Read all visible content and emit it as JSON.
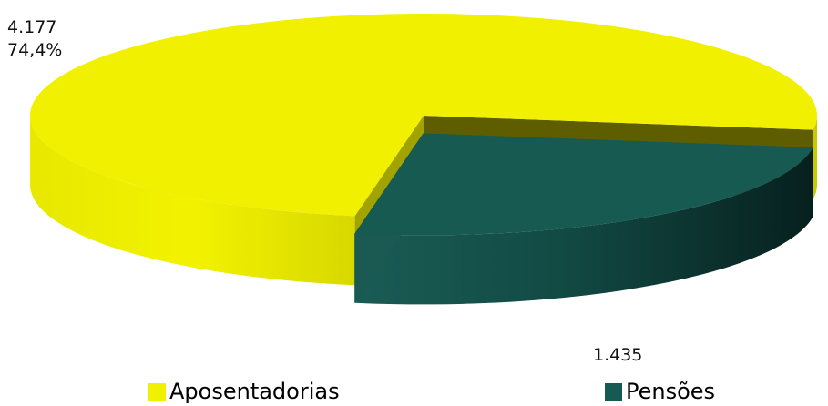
{
  "chart_data": {
    "type": "pie",
    "style": "3d-exploded",
    "categories": [
      "Aposentadorias",
      "Pensões"
    ],
    "values": [
      4177,
      1435
    ],
    "value_labels": [
      "4.177",
      "1.435"
    ],
    "percent_labels": [
      "74,4%",
      ""
    ],
    "colors": {
      "Aposentadorias": "#f0f000",
      "Pensões": "#165a52"
    },
    "legend_position": "bottom"
  }
}
